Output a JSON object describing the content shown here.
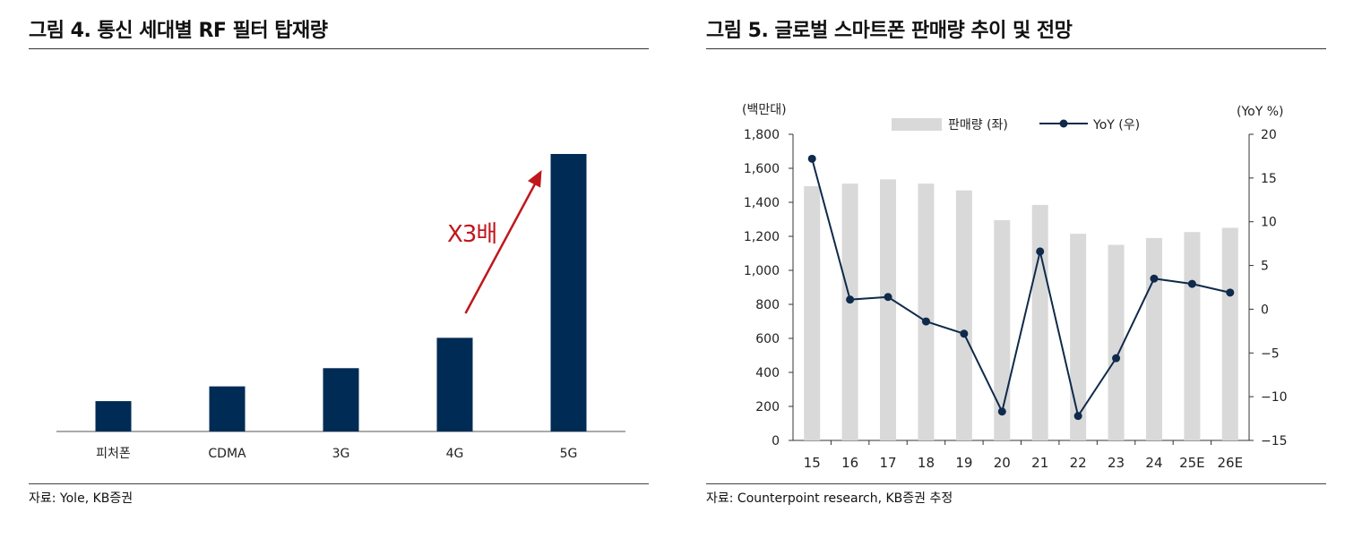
{
  "left": {
    "title": "그림 4. 통신 세대별 RF 필터 탑재량",
    "source": "자료: Yole, KB증권",
    "chart_data": {
      "type": "bar",
      "title": "그림 4. 통신 세대별 RF 필터 탑재량",
      "categories": [
        "피처폰",
        "CDMA",
        "3G",
        "4G",
        "5G"
      ],
      "values": [
        3.5,
        5.2,
        7.3,
        10.8,
        32
      ],
      "ylim": [
        0,
        32
      ],
      "grid": false,
      "annotation": "X3배",
      "colors": {
        "bar": "#002B55",
        "annotation": "#C0161C"
      }
    }
  },
  "right": {
    "title": "그림 5. 글로벌 스마트폰 판매량 추이 및 전망",
    "source": "자료: Counterpoint research, KB증권 추정",
    "chart_data": {
      "type": "bar",
      "title": "그림 5. 글로벌 스마트폰 판매량 추이 및 전망",
      "y_left_label": "(백만대)",
      "y_right_label": "(YoY %)",
      "categories": [
        "15",
        "16",
        "17",
        "18",
        "19",
        "20",
        "21",
        "22",
        "23",
        "24",
        "25E",
        "26E"
      ],
      "ylim_left": [
        0,
        1800
      ],
      "ylim_right": [
        -15,
        20
      ],
      "left_ticks": [
        "0",
        "200",
        "400",
        "600",
        "800",
        "1,000",
        "1,200",
        "1,400",
        "1,600",
        "1,800"
      ],
      "left_tick_values": [
        0,
        200,
        400,
        600,
        800,
        1000,
        1200,
        1400,
        1600,
        1800
      ],
      "right_ticks": [
        "−15",
        "−10",
        "−5",
        "0",
        "5",
        "10",
        "15",
        "20"
      ],
      "right_tick_values": [
        -15,
        -10,
        -5,
        0,
        5,
        10,
        15,
        20
      ],
      "series": [
        {
          "name": "판매량 (좌)",
          "type": "bar",
          "axis": "left",
          "values": [
            1495,
            1510,
            1535,
            1510,
            1470,
            1295,
            1385,
            1215,
            1150,
            1190,
            1225,
            1250
          ],
          "color": "#D9D9D9"
        },
        {
          "name": "YoY (우)",
          "type": "line",
          "axis": "right",
          "values": [
            17.2,
            1.1,
            1.4,
            -1.4,
            -2.8,
            -11.7,
            6.6,
            -12.2,
            -5.6,
            3.5,
            2.9,
            1.9
          ],
          "color": "#0F2A4A"
        }
      ],
      "legend": "top",
      "grid": false
    }
  }
}
